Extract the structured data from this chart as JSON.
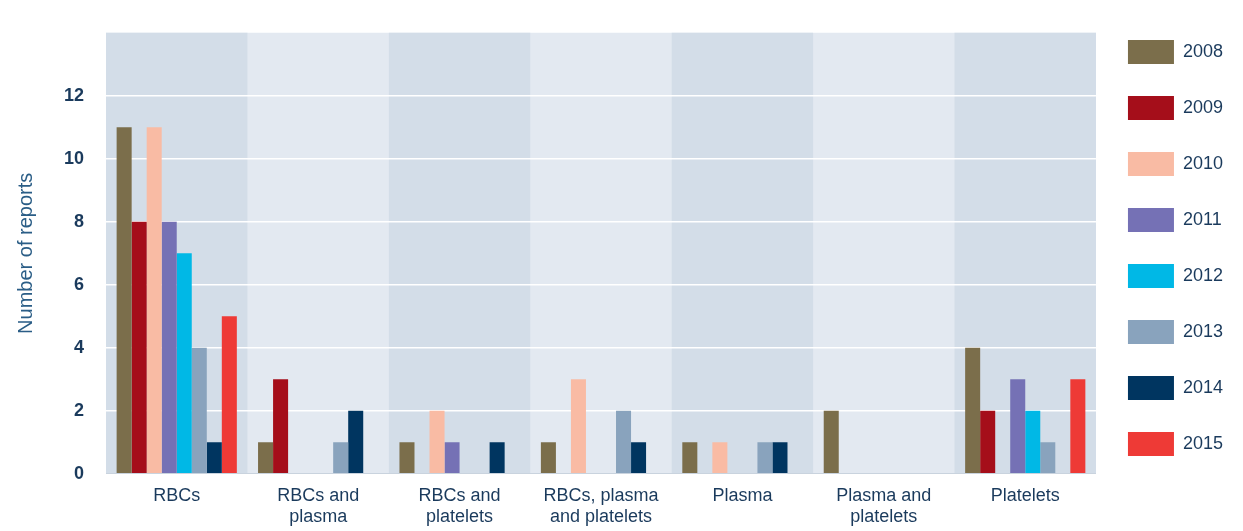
{
  "chart_data": {
    "type": "bar",
    "ylabel": "Number of reports",
    "categories": [
      "RBCs",
      "RBCs and plasma",
      "RBCs and platelets",
      "RBCs, plasma and platelets",
      "Plasma",
      "Plasma and platelets",
      "Platelets"
    ],
    "series": [
      {
        "name": "2008",
        "color": "#7b6e4b",
        "values": [
          11,
          1,
          1,
          1,
          1,
          2,
          4
        ]
      },
      {
        "name": "2009",
        "color": "#a50e1a",
        "values": [
          8,
          3,
          0,
          0,
          0,
          0,
          2
        ]
      },
      {
        "name": "2010",
        "color": "#f9bba4",
        "values": [
          11,
          0,
          2,
          3,
          1,
          0,
          0
        ]
      },
      {
        "name": "2011",
        "color": "#7571b5",
        "values": [
          8,
          0,
          1,
          0,
          0,
          0,
          3
        ]
      },
      {
        "name": "2012",
        "color": "#00b8e6",
        "values": [
          7,
          0,
          0,
          0,
          0,
          0,
          2
        ]
      },
      {
        "name": "2013",
        "color": "#89a3bd",
        "values": [
          4,
          1,
          0,
          2,
          1,
          0,
          1
        ]
      },
      {
        "name": "2014",
        "color": "#003560",
        "values": [
          1,
          2,
          1,
          1,
          1,
          0,
          0
        ]
      },
      {
        "name": "2015",
        "color": "#ee3a36",
        "values": [
          5,
          0,
          0,
          0,
          0,
          0,
          3
        ]
      }
    ],
    "ylim": [
      0,
      14
    ],
    "yticks": [
      0,
      2,
      4,
      6,
      8,
      10,
      12
    ],
    "grid": "y",
    "legend": "right"
  }
}
